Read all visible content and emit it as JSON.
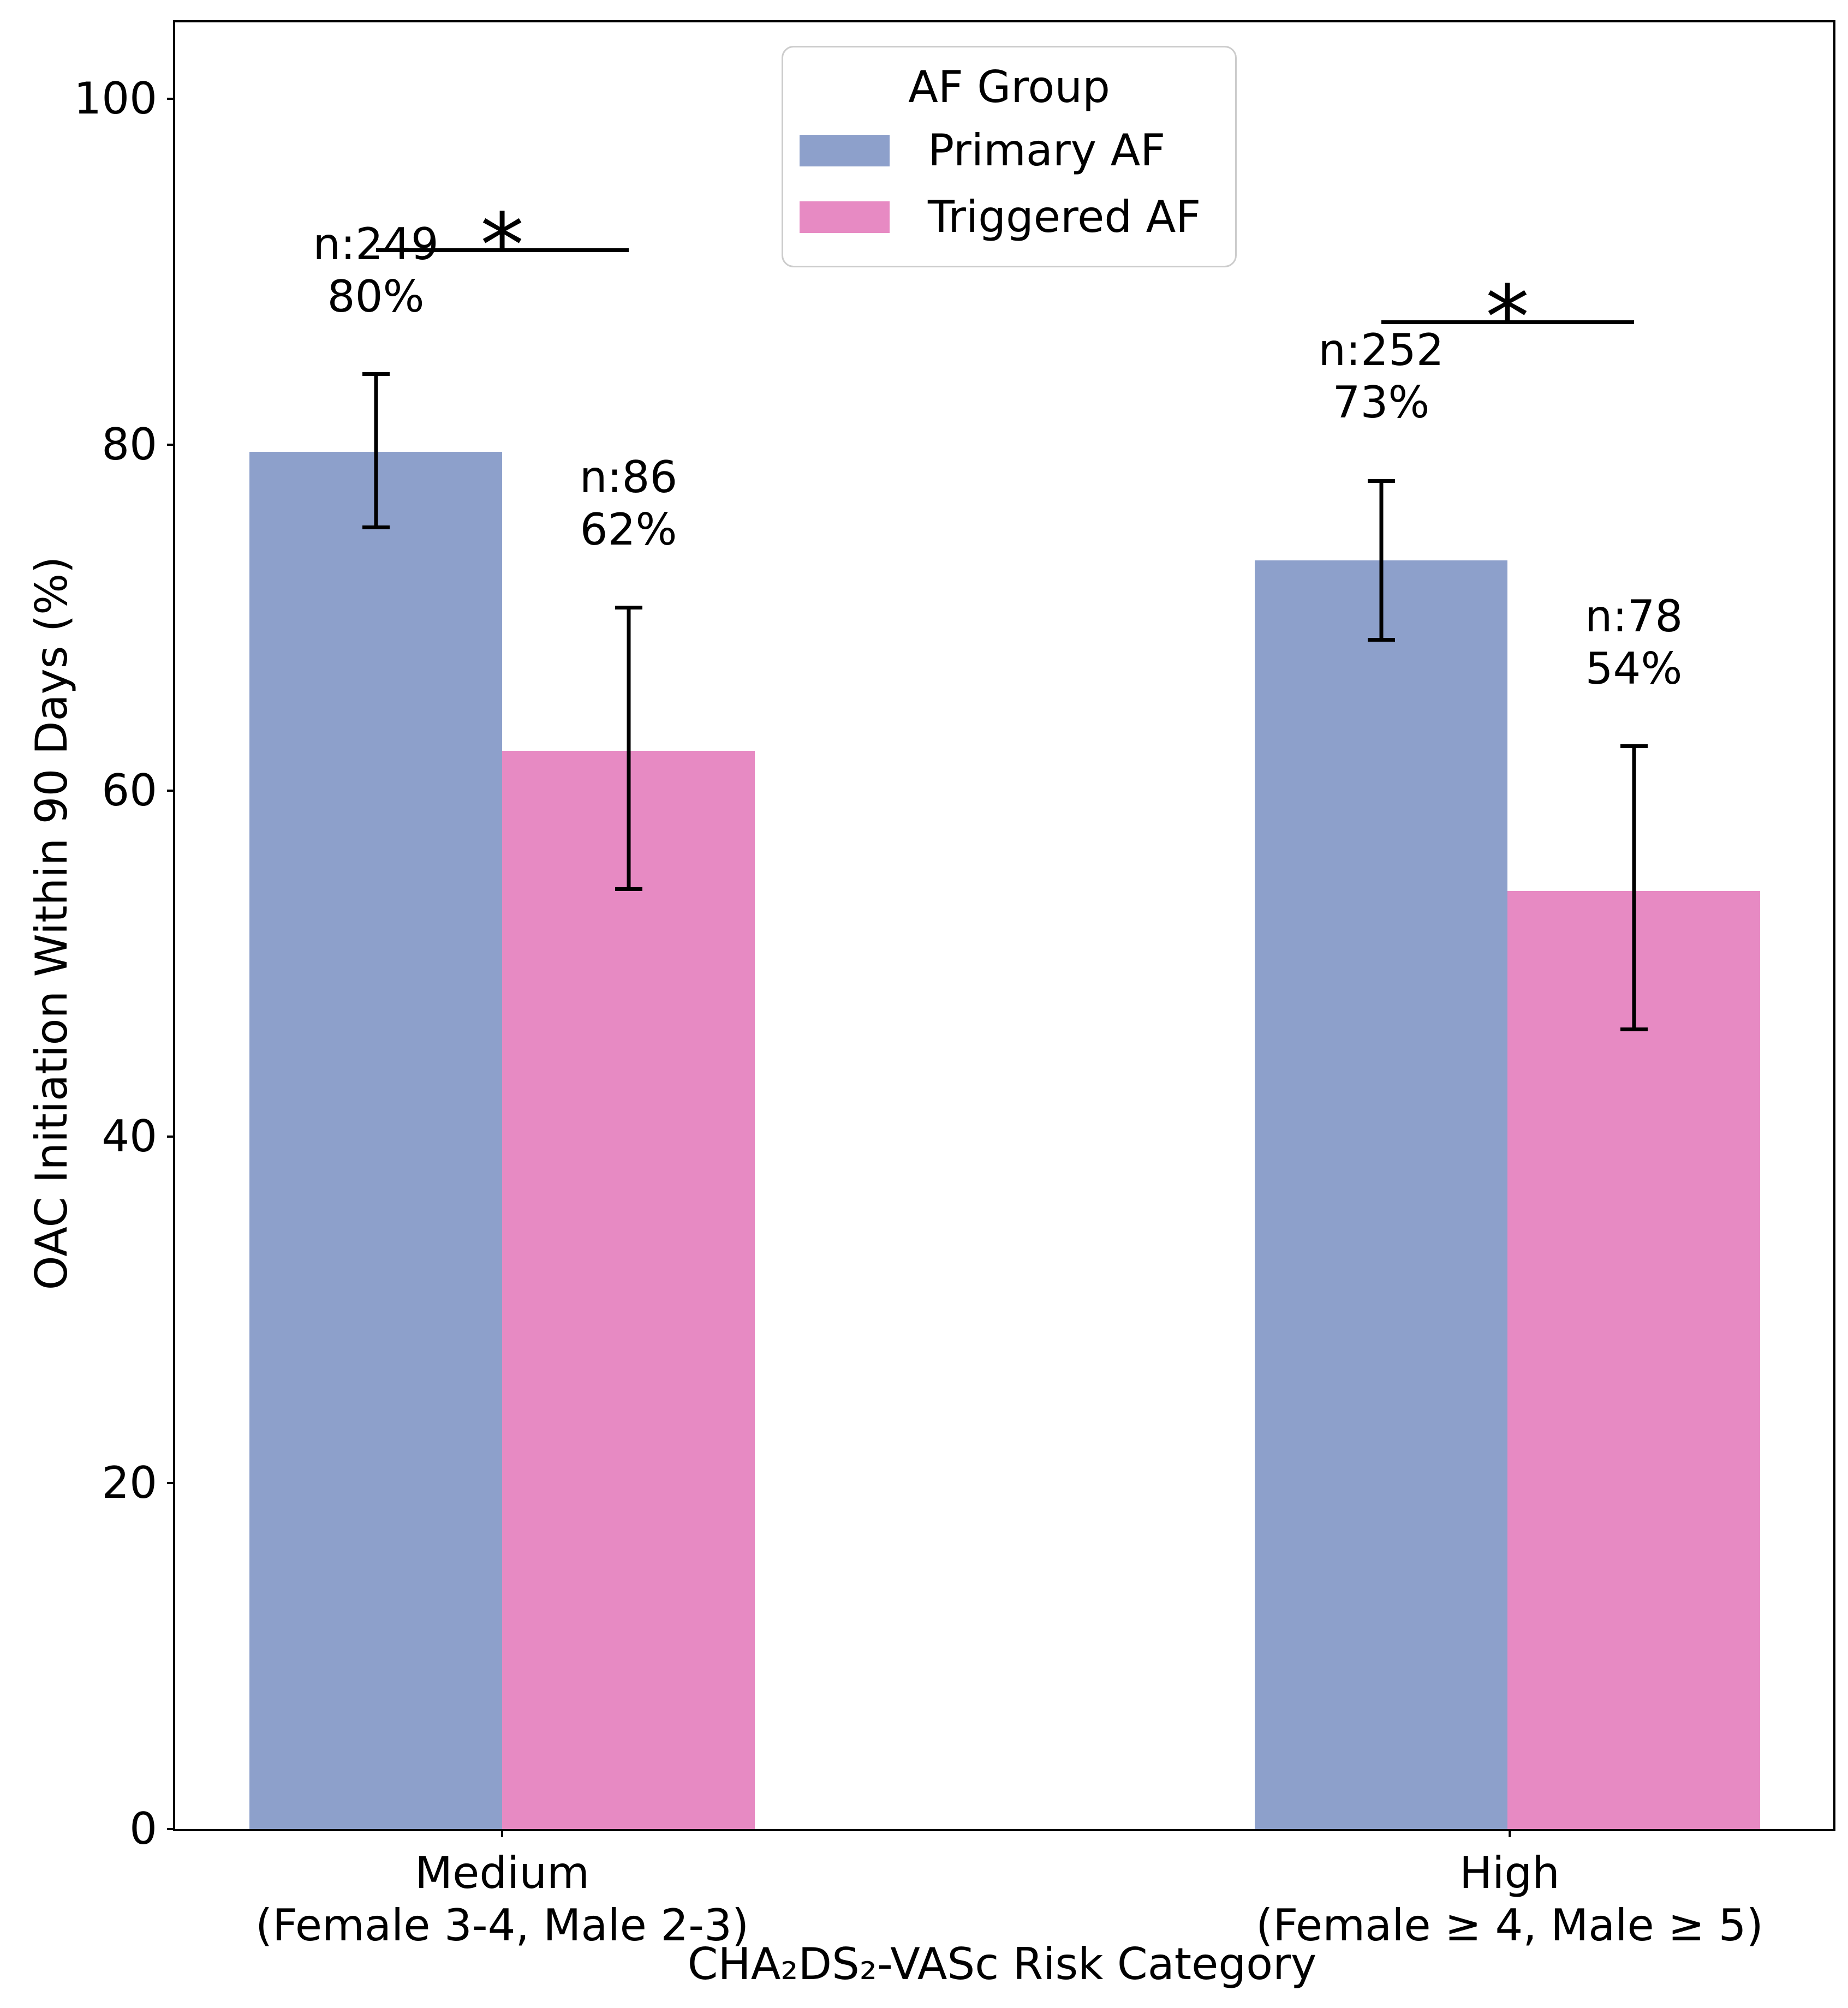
{
  "chart_data": {
    "type": "bar",
    "title": "",
    "xlabel": "CHA₂DS₂-VASc Risk Category",
    "ylabel": "OAC Initiation Within 90 Days (%)",
    "categories": [
      "Medium\n(Female 3-4, Male 2-3)",
      "High\n(Female ≥ 4, Male ≥ 5)"
    ],
    "xtick_lines": [
      [
        "Medium",
        "(Female 3-4, Male 2-3)"
      ],
      [
        "High",
        "(Female ≥ 4, Male ≥ 5)"
      ]
    ],
    "yticks": [
      0,
      20,
      40,
      60,
      80,
      100
    ],
    "ylim": [
      0,
      104.4
    ],
    "grid": false,
    "background_color": "#ffffff",
    "text_color": "#000000",
    "legend": {
      "title": "AF Group",
      "position": "upper center",
      "items": [
        {
          "label": "Primary AF",
          "color": "#8da0cb"
        },
        {
          "label": "Triggered AF",
          "color": "#e78ac3"
        }
      ]
    },
    "series": [
      {
        "name": "Primary AF",
        "color": "#8da0cb",
        "values": [
          79.6,
          73.3
        ],
        "ci": [
          [
            75.1,
            84.2
          ],
          [
            68.6,
            78.0
          ]
        ],
        "counts": [
          249,
          252
        ]
      },
      {
        "name": "Triggered AF",
        "color": "#e78ac3",
        "values": [
          62.3,
          54.2
        ],
        "ci": [
          [
            54.2,
            70.7
          ],
          [
            46.1,
            62.7
          ]
        ],
        "counts": [
          86,
          78
        ]
      }
    ],
    "annotations": [
      {
        "line1": "n:249",
        "line2": "80%"
      },
      {
        "line1": "n:86",
        "line2": "62%"
      },
      {
        "line1": "n:252",
        "line2": "73%"
      },
      {
        "line1": "n:78",
        "line2": "54%"
      }
    ],
    "significance": [
      {
        "label": "*",
        "between": "Primary AF vs Triggered AF (Medium)"
      },
      {
        "label": "*",
        "between": "Primary AF vs Triggered AF (High)"
      }
    ]
  }
}
